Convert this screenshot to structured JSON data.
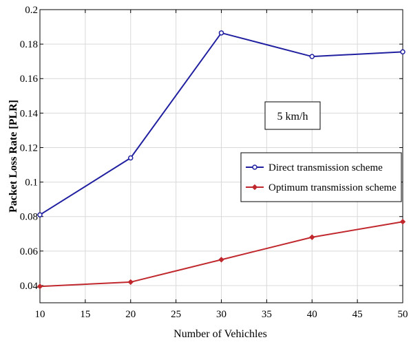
{
  "chart_data": {
    "type": "line",
    "title": "",
    "xlabel": "Number of Vehichles",
    "ylabel": "Packet Loss Rate [PLR]",
    "xlim": [
      10,
      50
    ],
    "ylim": [
      0.03,
      0.2
    ],
    "xticks": [
      10,
      15,
      20,
      25,
      30,
      35,
      40,
      45,
      50
    ],
    "yticks": [
      0.04,
      0.06,
      0.08,
      0.1,
      0.12,
      0.14,
      0.16,
      0.18,
      0.2
    ],
    "xtick_labels": [
      "10",
      "15",
      "20",
      "25",
      "30",
      "35",
      "40",
      "45",
      "50"
    ],
    "ytick_labels": [
      "0.04",
      "0.06",
      "0.08",
      "0.1",
      "0.12",
      "0.14",
      "0.16",
      "0.18",
      "0.2"
    ],
    "grid": true,
    "legend_position": "right",
    "x": [
      10,
      20,
      30,
      40,
      50
    ],
    "series": [
      {
        "name": "Direct transmission scheme",
        "values": [
          0.081,
          0.114,
          0.1865,
          0.1728,
          0.1755
        ],
        "color": "#1f1fa0",
        "marker": "circle"
      },
      {
        "name": "Optimum transmission scheme",
        "values": [
          0.0395,
          0.042,
          0.055,
          0.068,
          0.077
        ],
        "color": "#c0282d",
        "marker": "diamond"
      }
    ],
    "annotations": [
      {
        "text": "5 km/h",
        "x": 33.5,
        "y": 0.151
      }
    ]
  }
}
